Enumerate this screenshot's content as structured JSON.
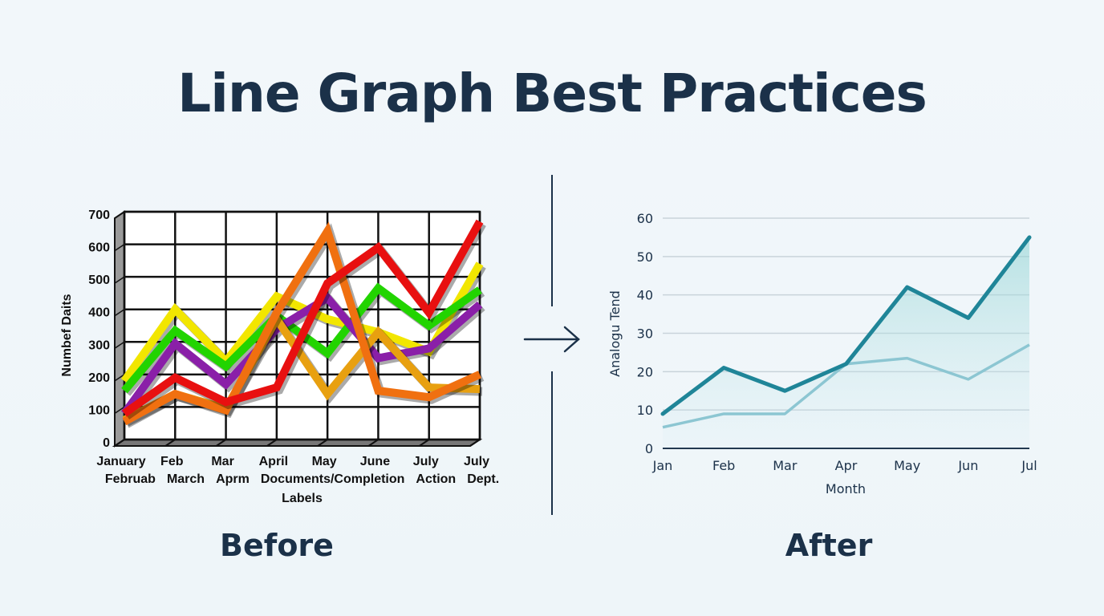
{
  "title": "Line Graph Best Practices",
  "captions": {
    "before": "Before",
    "after": "After"
  },
  "icons": {
    "divider_arrow": "arrow-right-icon"
  },
  "chart_data": [
    {
      "type": "line",
      "style": "3d-cluttered",
      "ylabel": "Numbef Daits",
      "xlabel": "Labels",
      "ylim": [
        0,
        700
      ],
      "yticks": [
        0,
        100,
        200,
        300,
        400,
        500,
        600,
        700
      ],
      "categories": [
        "January",
        "Feb",
        "Mar",
        "April",
        "May",
        "June",
        "July",
        "July"
      ],
      "overlapping_labels": [
        "Februab",
        "March",
        "Aprm",
        "Documents/Completion",
        "Action",
        "Dept."
      ],
      "grid": true,
      "series": [
        {
          "color": "#f2e600",
          "values": [
            180,
            400,
            240,
            440,
            370,
            330,
            270,
            540
          ]
        },
        {
          "color": "#22d400",
          "values": [
            150,
            335,
            225,
            380,
            265,
            465,
            350,
            460
          ]
        },
        {
          "color": "#8a1fa8",
          "values": [
            80,
            295,
            170,
            340,
            435,
            250,
            280,
            415
          ]
        },
        {
          "color": "#e8a010",
          "values": [
            60,
            140,
            95,
            370,
            140,
            330,
            160,
            155
          ]
        },
        {
          "color": "#f07010",
          "values": [
            55,
            140,
            90,
            390,
            640,
            150,
            130,
            200
          ]
        },
        {
          "color": "#e81010",
          "values": [
            80,
            190,
            115,
            160,
            480,
            590,
            390,
            670
          ]
        }
      ]
    },
    {
      "type": "area",
      "ylabel": "Analogu Tend",
      "xlabel": "Month",
      "ylim": [
        0,
        60
      ],
      "yticks": [
        0,
        10,
        20,
        30,
        40,
        50,
        60
      ],
      "categories": [
        "Jan",
        "Feb",
        "Mar",
        "Apr",
        "May",
        "Jun",
        "Jul"
      ],
      "grid": true,
      "series": [
        {
          "color": "#1f8598",
          "values": [
            9,
            21,
            15,
            22,
            42,
            34,
            55
          ]
        },
        {
          "color": "#8cc6d2",
          "values": [
            5.5,
            9,
            9,
            22,
            23.5,
            18,
            27
          ]
        }
      ]
    }
  ]
}
